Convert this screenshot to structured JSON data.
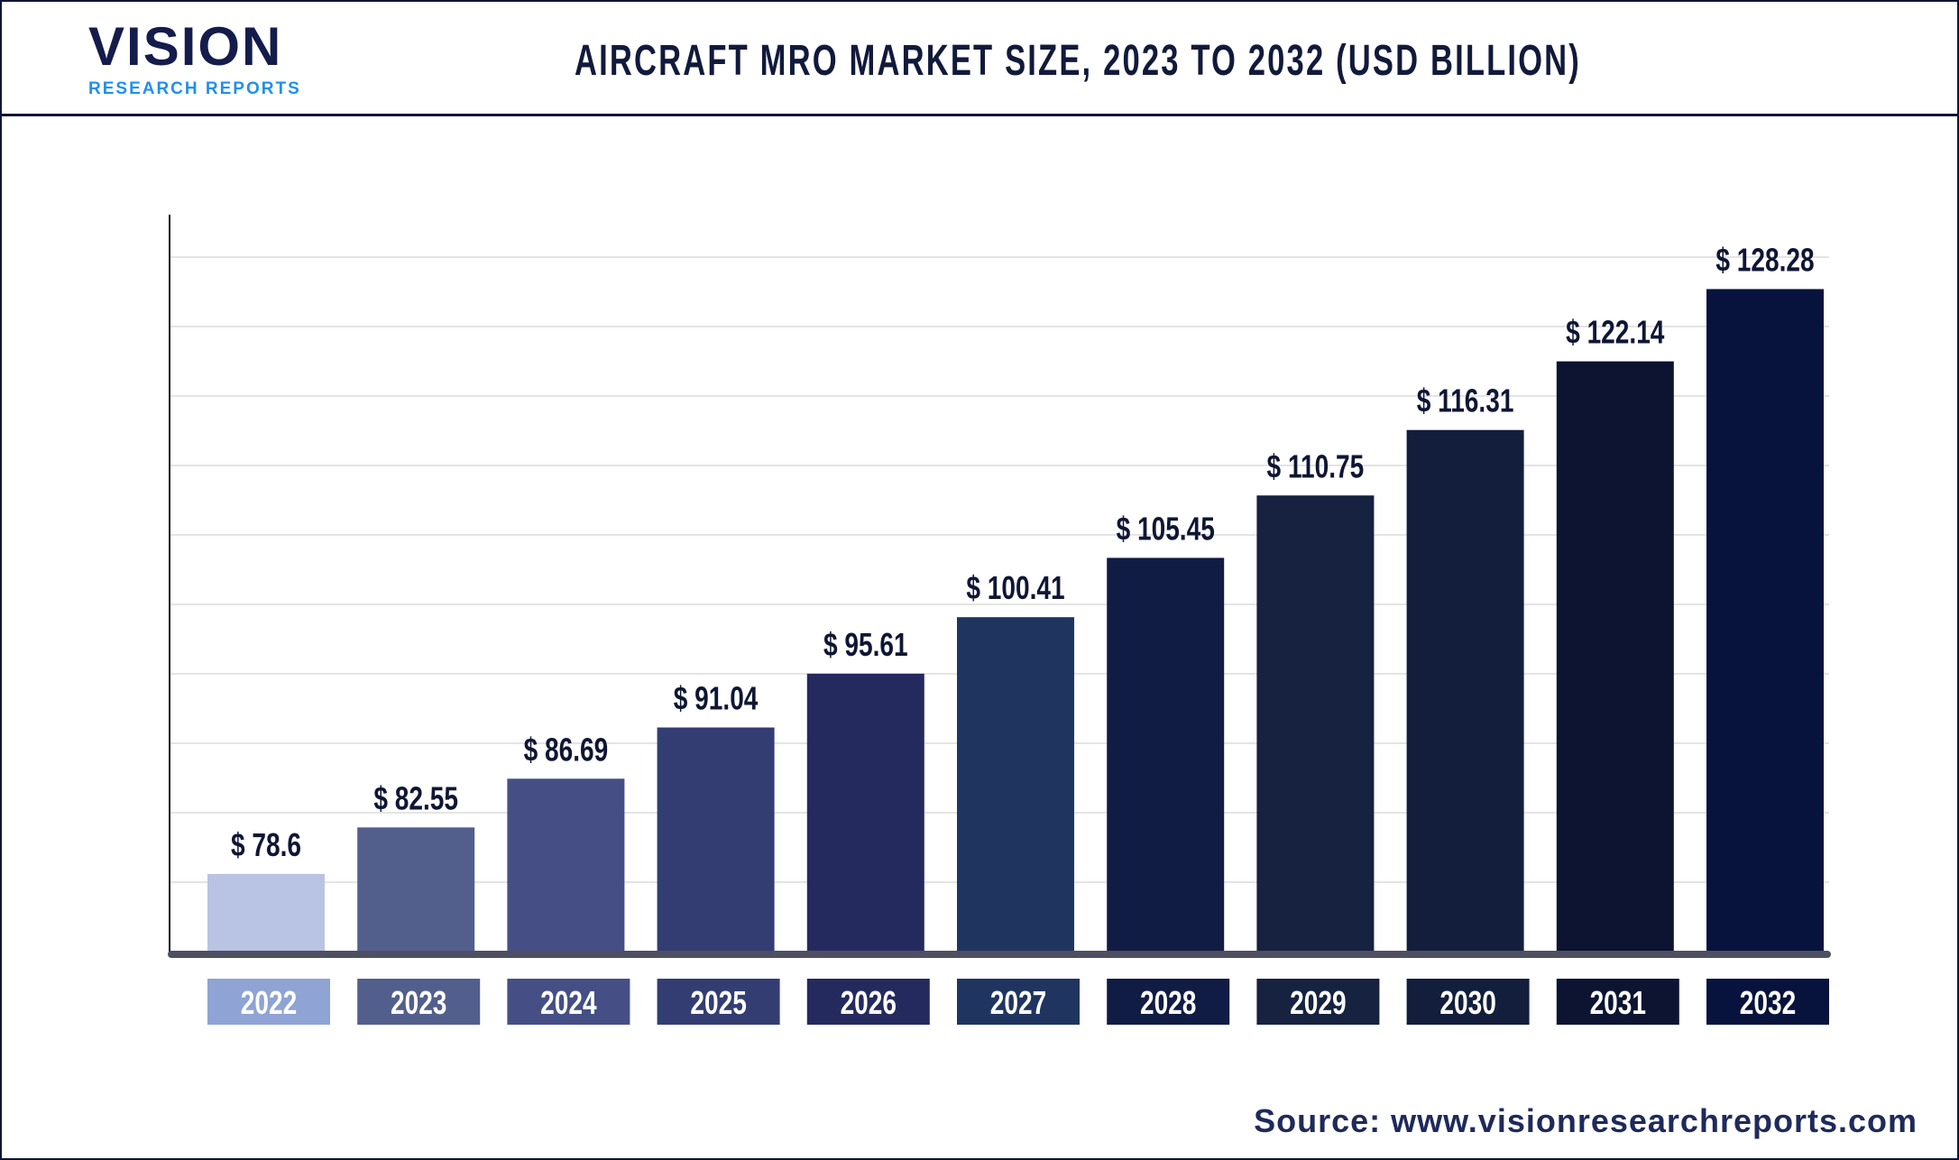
{
  "logo": {
    "main": "VISION",
    "sub": "RESEARCH REPORTS"
  },
  "header": {
    "title": "AIRCRAFT MRO MARKET SIZE, 2023 TO 2032 (USD BILLION)"
  },
  "source": "Source: www.visionresearchreports.com",
  "chart_data": {
    "type": "bar",
    "title": "AIRCRAFT MRO MARKET SIZE, 2023 TO 2032 (USD BILLION)",
    "categories": [
      "2022",
      "2023",
      "2024",
      "2025",
      "2026",
      "2027",
      "2028",
      "2029",
      "2030",
      "2031",
      "2032"
    ],
    "values": [
      78.6,
      82.55,
      86.69,
      91.04,
      95.61,
      100.41,
      105.45,
      110.75,
      116.31,
      122.14,
      128.28
    ],
    "value_prefix": "$ ",
    "grid": true,
    "ylim": [
      72,
      134.6
    ],
    "bar_colors": [
      "#b9c3e3",
      "#525e8c",
      "#454f86",
      "#333d72",
      "#242a5e",
      "#1f3560",
      "#111c44",
      "#16223f",
      "#121e3c",
      "#0c1431",
      "#07133d"
    ],
    "label_colors": [
      "#8fa3d4",
      "#525e8c",
      "#454f86",
      "#333d72",
      "#242a5e",
      "#1f3560",
      "#111c44",
      "#16223f",
      "#121e3c",
      "#0c1431",
      "#07133d"
    ]
  }
}
